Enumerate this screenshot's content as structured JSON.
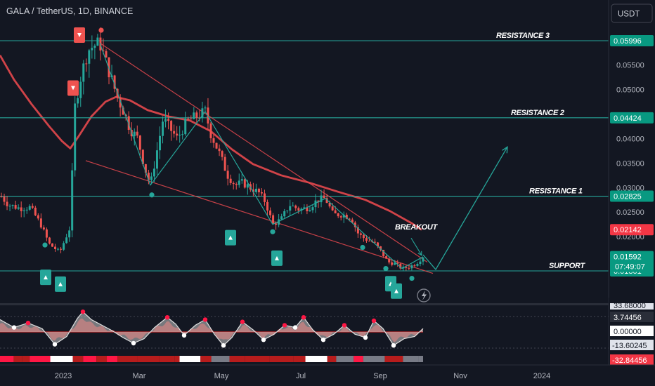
{
  "header": {
    "symbol": "GALA / TetherUS, 1D, BINANCE"
  },
  "currency_button": {
    "label": "USDT"
  },
  "colors": {
    "background": "#131722",
    "up_candle": "#26a69a",
    "down_candle": "#ef5350",
    "level_line": "#26a69a",
    "moving_average": "#e5484d",
    "wedge_line": "#e5484d",
    "zigzag": "#26a69a",
    "buy_marker": "#26a69a",
    "sell_marker": "#ef5350",
    "oscillator_white": "#c8c8c8",
    "oscillator_red": "#d32f2f"
  },
  "chart_data": {
    "type": "candlestick",
    "x_ticks": [
      "2023",
      "Mar",
      "May",
      "Jul",
      "Sep",
      "Nov",
      "2024"
    ],
    "y_ticks": [
      "0.05500",
      "0.05000",
      "0.04000",
      "0.03500",
      "0.03000",
      "0.02500",
      "0.02000"
    ],
    "y_range": [
      0.0105,
      0.0635
    ],
    "levels": [
      {
        "label": "RESISTANCE 3",
        "value": 0.05996,
        "tag": "0.05996"
      },
      {
        "label": "RESISTANCE 2",
        "value": 0.04424,
        "tag": "0.04424"
      },
      {
        "label": "RESISTANCE 1",
        "value": 0.02825,
        "tag": "0.02825"
      },
      {
        "label": "SUPPORT",
        "value": 0.01301,
        "tag": "0.01301"
      }
    ],
    "annotations": {
      "breakout": "BREAKOUT"
    },
    "current_price": {
      "value": 0.01592,
      "tag": "0.01592",
      "countdown": "07:49:07"
    },
    "ma_tag": {
      "value": 0.02142,
      "tag": "0.02142"
    },
    "path": [
      [
        0,
        0.0285
      ],
      [
        12,
        0.0265
      ],
      [
        28,
        0.0258
      ],
      [
        43,
        0.026
      ],
      [
        58,
        0.0225
      ],
      [
        70,
        0.0185
      ],
      [
        85,
        0.0168
      ],
      [
        100,
        0.022
      ],
      [
        106,
        0.046
      ],
      [
        114,
        0.052
      ],
      [
        125,
        0.058
      ],
      [
        134,
        0.059
      ],
      [
        142,
        0.0595
      ],
      [
        150,
        0.056
      ],
      [
        160,
        0.0515
      ],
      [
        168,
        0.048
      ],
      [
        176,
        0.0455
      ],
      [
        185,
        0.042
      ],
      [
        196,
        0.04
      ],
      [
        206,
        0.034
      ],
      [
        214,
        0.0305
      ],
      [
        224,
        0.038
      ],
      [
        232,
        0.044
      ],
      [
        242,
        0.042
      ],
      [
        252,
        0.04
      ],
      [
        266,
        0.0435
      ],
      [
        280,
        0.0445
      ],
      [
        292,
        0.0455
      ],
      [
        300,
        0.041
      ],
      [
        312,
        0.037
      ],
      [
        324,
        0.0325
      ],
      [
        335,
        0.0305
      ],
      [
        345,
        0.031
      ],
      [
        356,
        0.03
      ],
      [
        368,
        0.029
      ],
      [
        378,
        0.027
      ],
      [
        388,
        0.0225
      ],
      [
        400,
        0.0235
      ],
      [
        412,
        0.0265
      ],
      [
        426,
        0.0255
      ],
      [
        440,
        0.026
      ],
      [
        452,
        0.0275
      ],
      [
        463,
        0.0278
      ],
      [
        474,
        0.0245
      ],
      [
        488,
        0.0245
      ],
      [
        500,
        0.0238
      ],
      [
        510,
        0.0205
      ],
      [
        520,
        0.0195
      ],
      [
        532,
        0.0188
      ],
      [
        542,
        0.017
      ],
      [
        552,
        0.0148
      ],
      [
        562,
        0.0145
      ],
      [
        572,
        0.0135
      ],
      [
        582,
        0.0138
      ],
      [
        592,
        0.0145
      ],
      [
        602,
        0.0159
      ]
    ],
    "moving_average_path": [
      [
        0,
        0.057
      ],
      [
        20,
        0.052
      ],
      [
        45,
        0.047
      ],
      [
        70,
        0.0425
      ],
      [
        88,
        0.0395
      ],
      [
        100,
        0.038
      ],
      [
        112,
        0.0405
      ],
      [
        130,
        0.0445
      ],
      [
        150,
        0.0475
      ],
      [
        165,
        0.0485
      ],
      [
        185,
        0.0478
      ],
      [
        210,
        0.0458
      ],
      [
        240,
        0.0445
      ],
      [
        270,
        0.0437
      ],
      [
        300,
        0.0415
      ],
      [
        330,
        0.0378
      ],
      [
        360,
        0.0348
      ],
      [
        400,
        0.0325
      ],
      [
        440,
        0.031
      ],
      [
        480,
        0.0292
      ],
      [
        520,
        0.0275
      ],
      [
        555,
        0.0252
      ],
      [
        585,
        0.0228
      ],
      [
        600,
        0.0214
      ]
    ],
    "wedge_upper": [
      [
        142,
        0.0595
      ],
      [
        608,
        0.0148
      ]
    ],
    "wedge_lower": [
      [
        122,
        0.0355
      ],
      [
        616,
        0.0125
      ]
    ],
    "zigzag_path": [
      [
        142,
        0.0595
      ],
      [
        214,
        0.0305
      ],
      [
        292,
        0.0455
      ],
      [
        388,
        0.0225
      ],
      [
        463,
        0.0278
      ],
      [
        572,
        0.0135
      ],
      [
        602,
        0.0159
      ]
    ],
    "projection_path": [
      [
        602,
        0.0163
      ],
      [
        620,
        0.0133
      ],
      [
        722,
        0.0383
      ]
    ],
    "breakout_arrow": {
      "from": [
        585,
        0.0197
      ],
      "to": [
        600,
        0.0162
      ]
    },
    "sell_markers": [
      [
        113,
        0.0611
      ],
      [
        104,
        0.0503
      ]
    ],
    "buy_markers": [
      [
        65,
        0.0117
      ],
      [
        86,
        0.0103
      ],
      [
        328,
        0.0198
      ],
      [
        394,
        0.0156
      ],
      [
        556,
        0.0104
      ],
      [
        564,
        0.0089
      ]
    ],
    "dots": [
      {
        "x": 144,
        "v": 0.0621,
        "c": "red"
      },
      {
        "x": 64,
        "v": 0.0183,
        "c": "green"
      },
      {
        "x": 216,
        "v": 0.0285,
        "c": "green"
      },
      {
        "x": 388,
        "v": 0.021,
        "c": "green"
      },
      {
        "x": 516,
        "v": 0.0178,
        "c": "green"
      },
      {
        "x": 549,
        "v": 0.0135,
        "c": "green"
      },
      {
        "x": 586,
        "v": 0.0115,
        "c": "green"
      }
    ],
    "oscillator": {
      "y_ticks": [
        "3.74456",
        "0.00000",
        "-13.60245",
        "-32.84456"
      ],
      "top_tag": "33.68000",
      "white_path": [
        [
          0,
          0.55
        ],
        [
          20,
          0.2
        ],
        [
          40,
          0.4
        ],
        [
          60,
          0.15
        ],
        [
          78,
          -0.55
        ],
        [
          95,
          -0.2
        ],
        [
          110,
          0.6
        ],
        [
          118,
          0.9
        ],
        [
          130,
          0.55
        ],
        [
          145,
          0.3
        ],
        [
          160,
          0.05
        ],
        [
          175,
          -0.25
        ],
        [
          190,
          -0.5
        ],
        [
          205,
          -0.3
        ],
        [
          220,
          0.2
        ],
        [
          238,
          0.65
        ],
        [
          250,
          0.35
        ],
        [
          262,
          -0.15
        ],
        [
          278,
          0.3
        ],
        [
          292,
          0.55
        ],
        [
          305,
          -0.1
        ],
        [
          318,
          -0.6
        ],
        [
          330,
          -0.25
        ],
        [
          345,
          0.45
        ],
        [
          360,
          0.1
        ],
        [
          375,
          -0.35
        ],
        [
          390,
          -0.1
        ],
        [
          405,
          0.3
        ],
        [
          420,
          0.2
        ],
        [
          432,
          0.65
        ],
        [
          445,
          0.1
        ],
        [
          460,
          -0.35
        ],
        [
          475,
          -0.1
        ],
        [
          490,
          0.3
        ],
        [
          505,
          -0.1
        ],
        [
          520,
          -0.25
        ],
        [
          532,
          0.5
        ],
        [
          545,
          0.15
        ],
        [
          560,
          -0.6
        ],
        [
          575,
          -0.3
        ],
        [
          590,
          -0.2
        ],
        [
          602,
          0.15
        ]
      ]
    }
  }
}
